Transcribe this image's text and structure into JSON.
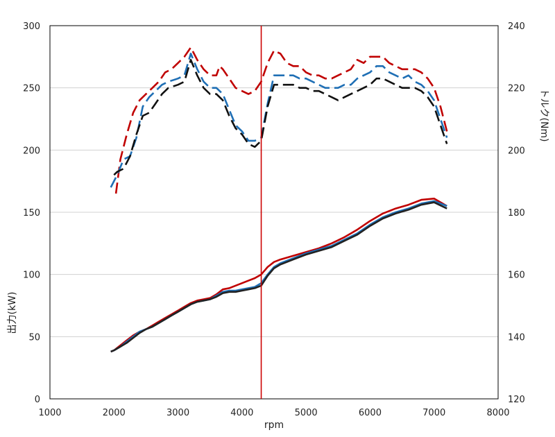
{
  "chart_data": {
    "type": "line",
    "title": "",
    "xlabel": "rpm",
    "ylabel_left": "出力(kW)",
    "ylabel_right": "トルク(Nm)",
    "xlim": [
      1000,
      8000
    ],
    "ylim_left": [
      0,
      300
    ],
    "ylim_right": [
      120,
      240
    ],
    "x_ticks": [
      1000,
      2000,
      3000,
      4000,
      5000,
      6000,
      7000,
      8000
    ],
    "y_left_ticks": [
      0,
      50,
      100,
      150,
      200,
      250,
      300
    ],
    "y_right_ticks": [
      120,
      140,
      160,
      180,
      200,
      220,
      240
    ],
    "gridlines": "horizontal",
    "legend": "none",
    "reference_line": {
      "x": 4300,
      "color": "#cc0000"
    },
    "series": [
      {
        "axis": "left",
        "style": "solid",
        "color": "#c00000",
        "points": [
          [
            1950,
            38
          ],
          [
            2000,
            39
          ],
          [
            2100,
            43
          ],
          [
            2200,
            47
          ],
          [
            2300,
            51
          ],
          [
            2400,
            54
          ],
          [
            2500,
            56
          ],
          [
            2600,
            59
          ],
          [
            2700,
            62
          ],
          [
            2800,
            65
          ],
          [
            2900,
            68
          ],
          [
            3000,
            71
          ],
          [
            3100,
            74
          ],
          [
            3200,
            77
          ],
          [
            3300,
            79
          ],
          [
            3400,
            80
          ],
          [
            3500,
            81
          ],
          [
            3600,
            84
          ],
          [
            3700,
            88
          ],
          [
            3800,
            89
          ],
          [
            3900,
            91
          ],
          [
            4000,
            93
          ],
          [
            4100,
            95
          ],
          [
            4200,
            97
          ],
          [
            4300,
            100
          ],
          [
            4400,
            106
          ],
          [
            4500,
            110
          ],
          [
            4600,
            112
          ],
          [
            4800,
            115
          ],
          [
            5000,
            118
          ],
          [
            5200,
            121
          ],
          [
            5400,
            125
          ],
          [
            5600,
            130
          ],
          [
            5800,
            136
          ],
          [
            6000,
            143
          ],
          [
            6200,
            149
          ],
          [
            6400,
            153
          ],
          [
            6600,
            156
          ],
          [
            6800,
            160
          ],
          [
            7000,
            161
          ],
          [
            7200,
            155
          ]
        ]
      },
      {
        "axis": "left",
        "style": "solid",
        "color": "#1f6fb5",
        "points": [
          [
            1950,
            38
          ],
          [
            2000,
            39
          ],
          [
            2100,
            42
          ],
          [
            2200,
            46
          ],
          [
            2300,
            50
          ],
          [
            2400,
            54
          ],
          [
            2500,
            56
          ],
          [
            2600,
            58
          ],
          [
            2700,
            61
          ],
          [
            2800,
            64
          ],
          [
            2900,
            67
          ],
          [
            3000,
            70
          ],
          [
            3100,
            73
          ],
          [
            3200,
            76
          ],
          [
            3300,
            78
          ],
          [
            3400,
            79
          ],
          [
            3500,
            80
          ],
          [
            3600,
            83
          ],
          [
            3700,
            86
          ],
          [
            3800,
            87
          ],
          [
            3900,
            87
          ],
          [
            4000,
            88
          ],
          [
            4100,
            89
          ],
          [
            4200,
            90
          ],
          [
            4300,
            93
          ],
          [
            4400,
            100
          ],
          [
            4500,
            106
          ],
          [
            4600,
            109
          ],
          [
            4800,
            113
          ],
          [
            5000,
            117
          ],
          [
            5200,
            120
          ],
          [
            5400,
            123
          ],
          [
            5600,
            128
          ],
          [
            5800,
            133
          ],
          [
            6000,
            140
          ],
          [
            6200,
            146
          ],
          [
            6400,
            150
          ],
          [
            6600,
            153
          ],
          [
            6800,
            157
          ],
          [
            7000,
            159
          ],
          [
            7200,
            155
          ]
        ]
      },
      {
        "axis": "left",
        "style": "solid",
        "color": "#222222",
        "points": [
          [
            1950,
            38
          ],
          [
            2000,
            39
          ],
          [
            2100,
            42
          ],
          [
            2200,
            45
          ],
          [
            2300,
            49
          ],
          [
            2400,
            53
          ],
          [
            2500,
            56
          ],
          [
            2600,
            58
          ],
          [
            2700,
            61
          ],
          [
            2800,
            64
          ],
          [
            2900,
            67
          ],
          [
            3000,
            70
          ],
          [
            3100,
            73
          ],
          [
            3200,
            76
          ],
          [
            3300,
            78
          ],
          [
            3400,
            79
          ],
          [
            3500,
            80
          ],
          [
            3600,
            82
          ],
          [
            3700,
            85
          ],
          [
            3800,
            86
          ],
          [
            3900,
            86
          ],
          [
            4000,
            87
          ],
          [
            4100,
            88
          ],
          [
            4200,
            89
          ],
          [
            4300,
            91
          ],
          [
            4400,
            99
          ],
          [
            4500,
            105
          ],
          [
            4600,
            108
          ],
          [
            4800,
            112
          ],
          [
            5000,
            116
          ],
          [
            5200,
            119
          ],
          [
            5400,
            122
          ],
          [
            5600,
            127
          ],
          [
            5800,
            132
          ],
          [
            6000,
            139
          ],
          [
            6200,
            145
          ],
          [
            6400,
            149
          ],
          [
            6600,
            152
          ],
          [
            6800,
            156
          ],
          [
            7000,
            158
          ],
          [
            7200,
            153
          ]
        ]
      },
      {
        "axis": "right",
        "style": "dashed",
        "color": "#c00000",
        "points": [
          [
            2030,
            186
          ],
          [
            2100,
            197
          ],
          [
            2200,
            205
          ],
          [
            2300,
            212
          ],
          [
            2400,
            216
          ],
          [
            2500,
            218
          ],
          [
            2600,
            220
          ],
          [
            2700,
            222
          ],
          [
            2800,
            225
          ],
          [
            2900,
            226
          ],
          [
            3000,
            228
          ],
          [
            3100,
            230
          ],
          [
            3200,
            233
          ],
          [
            3300,
            229
          ],
          [
            3400,
            226
          ],
          [
            3500,
            224
          ],
          [
            3600,
            224
          ],
          [
            3650,
            227
          ],
          [
            3700,
            226
          ],
          [
            3800,
            223
          ],
          [
            3900,
            220
          ],
          [
            4000,
            219
          ],
          [
            4100,
            218
          ],
          [
            4200,
            219
          ],
          [
            4300,
            222
          ],
          [
            4400,
            228
          ],
          [
            4500,
            232
          ],
          [
            4600,
            231
          ],
          [
            4700,
            228
          ],
          [
            4800,
            227
          ],
          [
            4900,
            227
          ],
          [
            5000,
            225
          ],
          [
            5100,
            224
          ],
          [
            5200,
            224
          ],
          [
            5300,
            223
          ],
          [
            5400,
            223
          ],
          [
            5500,
            224
          ],
          [
            5600,
            225
          ],
          [
            5700,
            226
          ],
          [
            5800,
            229
          ],
          [
            5900,
            228
          ],
          [
            6000,
            230
          ],
          [
            6200,
            230
          ],
          [
            6300,
            228
          ],
          [
            6400,
            227
          ],
          [
            6500,
            226
          ],
          [
            6600,
            226
          ],
          [
            6700,
            226
          ],
          [
            6800,
            225
          ],
          [
            6900,
            223
          ],
          [
            7000,
            220
          ],
          [
            7100,
            214
          ],
          [
            7200,
            206
          ]
        ]
      },
      {
        "axis": "right",
        "style": "dashed",
        "color": "#1f6fb5",
        "points": [
          [
            1950,
            188
          ],
          [
            2050,
            192
          ],
          [
            2150,
            197
          ],
          [
            2250,
            198
          ],
          [
            2350,
            204
          ],
          [
            2450,
            214
          ],
          [
            2550,
            217
          ],
          [
            2650,
            219
          ],
          [
            2750,
            221
          ],
          [
            2850,
            222
          ],
          [
            3000,
            223
          ],
          [
            3100,
            224
          ],
          [
            3200,
            231
          ],
          [
            3300,
            226
          ],
          [
            3400,
            222
          ],
          [
            3500,
            220
          ],
          [
            3600,
            220
          ],
          [
            3700,
            218
          ],
          [
            3800,
            213
          ],
          [
            3900,
            208
          ],
          [
            4000,
            206
          ],
          [
            4100,
            203
          ],
          [
            4200,
            203
          ],
          [
            4300,
            204
          ],
          [
            4400,
            215
          ],
          [
            4500,
            224
          ],
          [
            4600,
            224
          ],
          [
            4700,
            224
          ],
          [
            4800,
            224
          ],
          [
            4900,
            223
          ],
          [
            5000,
            223
          ],
          [
            5100,
            222
          ],
          [
            5200,
            221
          ],
          [
            5300,
            220
          ],
          [
            5400,
            220
          ],
          [
            5500,
            220
          ],
          [
            5600,
            221
          ],
          [
            5700,
            221
          ],
          [
            5800,
            223
          ],
          [
            5900,
            224
          ],
          [
            6000,
            225
          ],
          [
            6100,
            227
          ],
          [
            6200,
            227
          ],
          [
            6300,
            225
          ],
          [
            6400,
            224
          ],
          [
            6500,
            223
          ],
          [
            6600,
            224
          ],
          [
            6700,
            222
          ],
          [
            6800,
            221
          ],
          [
            6900,
            219
          ],
          [
            7000,
            216
          ],
          [
            7100,
            210
          ],
          [
            7200,
            204
          ]
        ]
      },
      {
        "axis": "right",
        "style": "dashed",
        "color": "#111111",
        "points": [
          [
            2000,
            192
          ],
          [
            2050,
            193
          ],
          [
            2150,
            194
          ],
          [
            2250,
            198
          ],
          [
            2350,
            205
          ],
          [
            2450,
            211
          ],
          [
            2550,
            212
          ],
          [
            2650,
            215
          ],
          [
            2750,
            218
          ],
          [
            2850,
            220
          ],
          [
            3000,
            221
          ],
          [
            3100,
            222
          ],
          [
            3200,
            229
          ],
          [
            3300,
            224
          ],
          [
            3400,
            220
          ],
          [
            3500,
            218
          ],
          [
            3600,
            218
          ],
          [
            3700,
            216
          ],
          [
            3800,
            211
          ],
          [
            3900,
            207
          ],
          [
            4000,
            205
          ],
          [
            4100,
            202
          ],
          [
            4200,
            201
          ],
          [
            4300,
            203
          ],
          [
            4400,
            214
          ],
          [
            4500,
            221
          ],
          [
            4600,
            221
          ],
          [
            4700,
            221
          ],
          [
            4800,
            221
          ],
          [
            4900,
            220
          ],
          [
            5000,
            220
          ],
          [
            5100,
            219
          ],
          [
            5200,
            219
          ],
          [
            5300,
            218
          ],
          [
            5400,
            217
          ],
          [
            5500,
            216
          ],
          [
            5600,
            217
          ],
          [
            5700,
            218
          ],
          [
            5800,
            219
          ],
          [
            5900,
            220
          ],
          [
            6000,
            221
          ],
          [
            6100,
            223
          ],
          [
            6200,
            223
          ],
          [
            6300,
            222
          ],
          [
            6400,
            221
          ],
          [
            6500,
            220
          ],
          [
            6600,
            220
          ],
          [
            6700,
            220
          ],
          [
            6800,
            219
          ],
          [
            6900,
            217
          ],
          [
            7000,
            214
          ],
          [
            7100,
            208
          ],
          [
            7200,
            202
          ]
        ]
      }
    ]
  }
}
